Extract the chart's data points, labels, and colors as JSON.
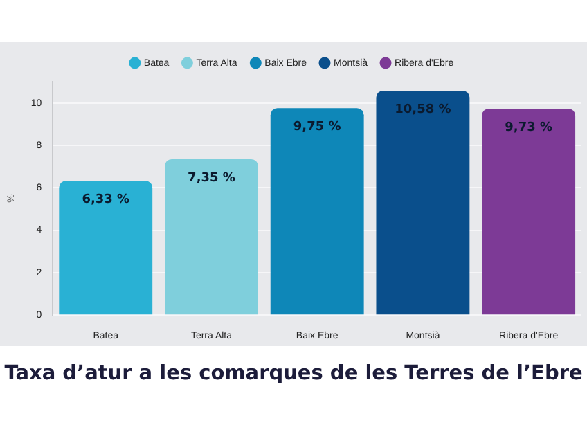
{
  "chart_data": {
    "type": "bar",
    "title": "Taxa d’atur a les comarques de les Terres de l’Ebre",
    "ylabel": "%",
    "categories": [
      "Batea",
      "Terra Alta",
      "Baix Ebre",
      "Montsià",
      "Ribera d'Ebre"
    ],
    "series": [
      {
        "name": "Batea",
        "color": "#29b1d4",
        "values": [
          6.33,
          null,
          null,
          null,
          null
        ],
        "value_labels": [
          "6,33 %",
          null,
          null,
          null,
          null
        ]
      },
      {
        "name": "Terra Alta",
        "color": "#7fcfdc",
        "values": [
          null,
          7.35,
          null,
          null,
          null
        ],
        "value_labels": [
          null,
          "7,35 %",
          null,
          null,
          null
        ]
      },
      {
        "name": "Baix Ebre",
        "color": "#0e87b8",
        "values": [
          null,
          null,
          9.75,
          null,
          null
        ],
        "value_labels": [
          null,
          null,
          "9,75 %",
          null,
          null
        ]
      },
      {
        "name": "Montsià",
        "color": "#0a4f8c",
        "values": [
          null,
          null,
          null,
          10.58,
          null
        ],
        "value_labels": [
          null,
          null,
          null,
          "10,58 %",
          null
        ]
      },
      {
        "name": "Ribera d'Ebre",
        "color": "#7d3a96",
        "values": [
          null,
          null,
          null,
          null,
          9.73
        ],
        "value_labels": [
          null,
          null,
          null,
          null,
          "9,73 %"
        ]
      }
    ],
    "ylim": [
      0,
      11
    ],
    "yticks": [
      0,
      2,
      4,
      6,
      8,
      10
    ],
    "grid": "y",
    "legend": "top"
  }
}
